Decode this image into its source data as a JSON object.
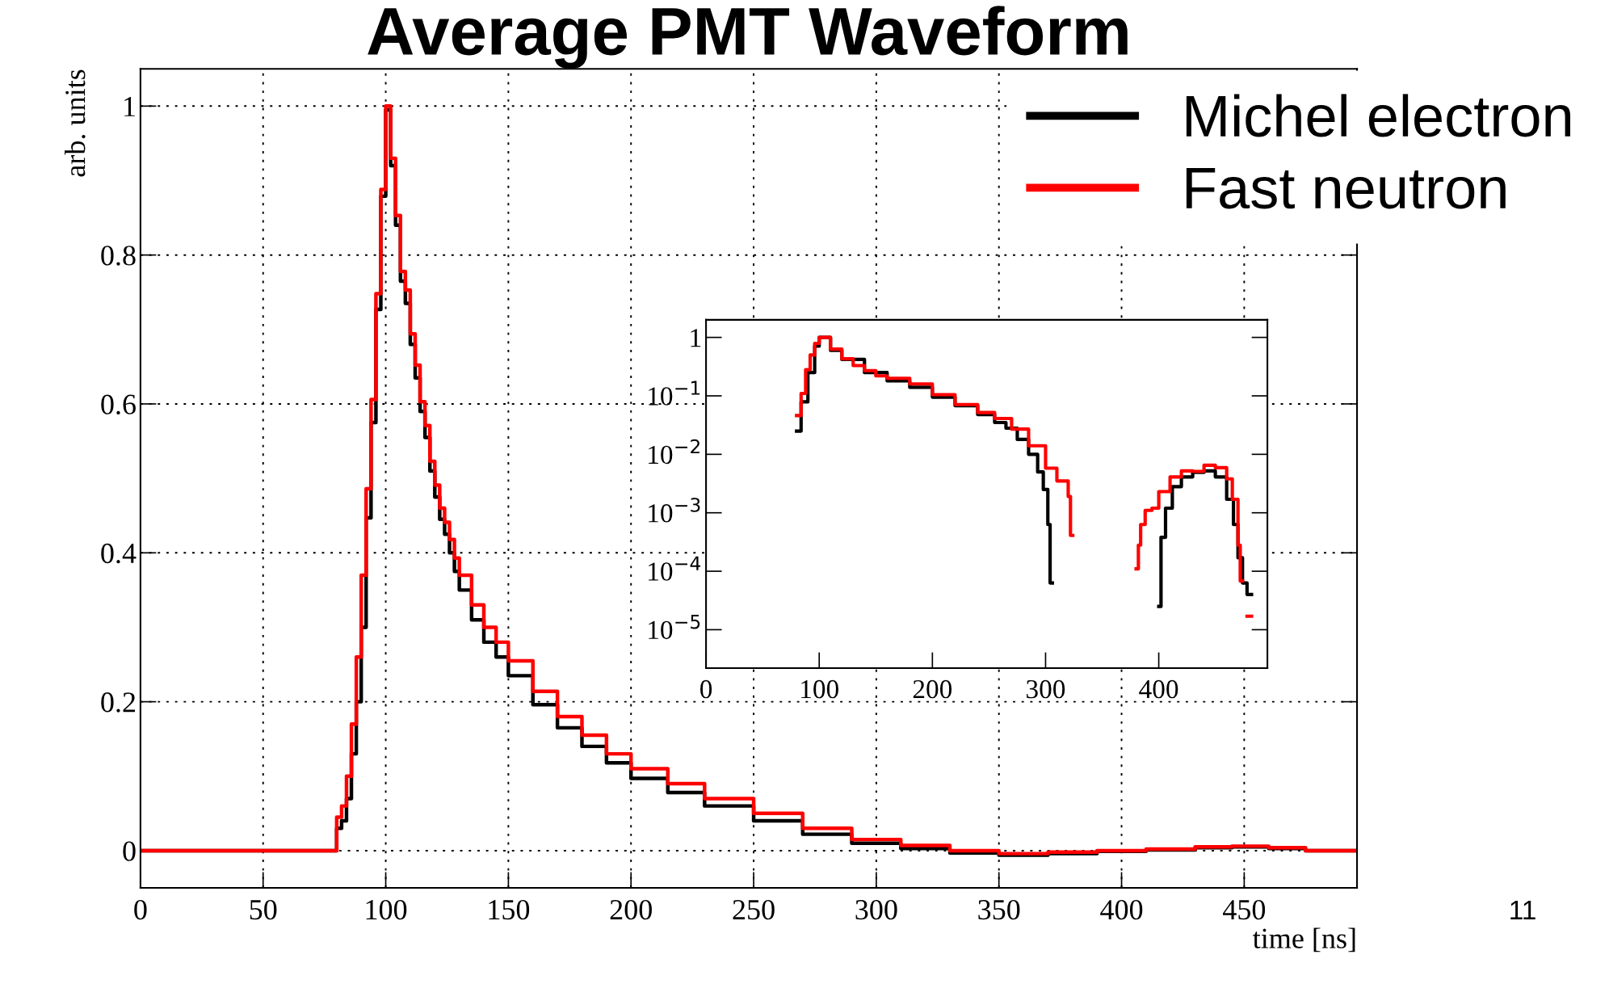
{
  "chart_data": [
    {
      "type": "step",
      "title": "Average PMT Waveform",
      "xlabel": "time [ns]",
      "ylabel": "arb. units",
      "annotations": [
        "11"
      ],
      "xlim": [
        0,
        496
      ],
      "ylim": [
        -0.05,
        1.05
      ],
      "xticks": [
        0,
        50,
        100,
        150,
        200,
        250,
        300,
        350,
        400,
        450
      ],
      "yticks": [
        0,
        0.2,
        0.4,
        0.6,
        0.8,
        1
      ],
      "grid": true,
      "legend": "top right",
      "series": [
        {
          "name": "Michel electron",
          "color": "#000000",
          "x": [
            0,
            80,
            82,
            84,
            86,
            88,
            90,
            92,
            94,
            96,
            98,
            100,
            102,
            104,
            106,
            108,
            110,
            112,
            114,
            116,
            118,
            120,
            122,
            124,
            126,
            128,
            130,
            135,
            140,
            145,
            150,
            160,
            170,
            180,
            190,
            200,
            215,
            230,
            250,
            270,
            290,
            310,
            330,
            350,
            370,
            390,
            410,
            430,
            445,
            460,
            475,
            496
          ],
          "values": [
            0,
            0.03,
            0.04,
            0.07,
            0.13,
            0.2,
            0.3,
            0.447,
            0.575,
            0.727,
            0.879,
            0.995,
            0.92,
            0.84,
            0.765,
            0.735,
            0.68,
            0.635,
            0.59,
            0.555,
            0.51,
            0.475,
            0.445,
            0.425,
            0.4,
            0.375,
            0.35,
            0.31,
            0.28,
            0.26,
            0.235,
            0.196,
            0.165,
            0.14,
            0.118,
            0.097,
            0.078,
            0.06,
            0.04,
            0.022,
            0.01,
            0.003,
            -0.003,
            -0.006,
            -0.004,
            -0.001,
            0.001,
            0.004,
            0.005,
            0.003,
            0,
            0
          ]
        },
        {
          "name": "Fast neutron",
          "color": "#ff0000",
          "x": [
            0,
            80,
            82,
            84,
            86,
            88,
            90,
            92,
            94,
            96,
            98,
            100,
            102,
            104,
            106,
            108,
            110,
            112,
            114,
            116,
            118,
            120,
            122,
            124,
            126,
            128,
            130,
            135,
            140,
            145,
            150,
            160,
            170,
            180,
            190,
            200,
            215,
            230,
            250,
            270,
            290,
            310,
            330,
            350,
            370,
            390,
            410,
            430,
            445,
            460,
            475,
            496
          ],
          "values": [
            0,
            0.045,
            0.06,
            0.1,
            0.17,
            0.26,
            0.37,
            0.486,
            0.606,
            0.748,
            0.888,
            1,
            0.93,
            0.853,
            0.778,
            0.753,
            0.694,
            0.652,
            0.603,
            0.571,
            0.523,
            0.491,
            0.46,
            0.441,
            0.418,
            0.393,
            0.37,
            0.33,
            0.3,
            0.28,
            0.255,
            0.214,
            0.18,
            0.155,
            0.13,
            0.11,
            0.09,
            0.07,
            0.05,
            0.03,
            0.015,
            0.007,
            0,
            -0.004,
            -0.002,
            0,
            0.002,
            0.005,
            0.006,
            0.004,
            0,
            0
          ]
        }
      ]
    },
    {
      "type": "step",
      "log": "y",
      "xlim": [
        0,
        496
      ],
      "ylim": [
        2.2e-06,
        2
      ],
      "xticks": [
        0,
        100,
        200,
        300,
        400
      ],
      "yticks": [
        {
          "value": 1e-05,
          "label": "10$^{−5}$"
        },
        {
          "value": 0.0001,
          "label": "10$^{−4}$"
        },
        {
          "value": 0.001,
          "label": "10$^{−3}$"
        },
        {
          "value": 0.01,
          "label": "10$^{−2}$"
        },
        {
          "value": 0.1,
          "label": "10$^{−1}$"
        },
        1
      ],
      "series": [
        {
          "color": "#000000",
          "x": [
            80,
            84,
            90,
            96,
            100,
            110,
            120,
            140,
            160,
            180,
            200,
            220,
            240,
            255,
            265,
            275,
            285,
            293,
            298,
            302,
            304,
            306,
            400,
            402,
            406,
            412,
            420,
            430,
            440,
            450,
            460,
            466,
            470,
            474,
            478,
            482
          ],
          "values": [
            0.025,
            0.079,
            0.25,
            0.71,
            1,
            0.6,
            0.42,
            0.25,
            0.18,
            0.14,
            0.095,
            0.068,
            0.048,
            0.035,
            0.028,
            0.018,
            0.01,
            0.005,
            0.0025,
            0.00063,
            6.3e-05,
            null,
            2.5e-05,
            0.00038,
            0.0012,
            0.0028,
            0.0041,
            0.0049,
            0.0052,
            0.0041,
            0.0017,
            0.00063,
            0.00017,
            6.3e-05,
            4e-05,
            4e-05
          ]
        },
        {
          "color": "#ff0000",
          "x": [
            80,
            84,
            88,
            92,
            96,
            100,
            110,
            120,
            130,
            140,
            150,
            160,
            180,
            200,
            220,
            240,
            255,
            270,
            285,
            300,
            310,
            320,
            322,
            324,
            380,
            382,
            384,
            388,
            394,
            400,
            410,
            420,
            430,
            440,
            450,
            460,
            465,
            470,
            472,
            474,
            478,
            482
          ],
          "values": [
            0.046,
            0.11,
            0.28,
            0.5,
            0.79,
            1,
            0.63,
            0.43,
            0.33,
            0.27,
            0.22,
            0.2,
            0.16,
            0.105,
            0.071,
            0.052,
            0.041,
            0.027,
            0.014,
            0.0058,
            0.0035,
            0.0019,
            0.00041,
            null,
            0.00011,
            0.00028,
            0.00063,
            0.0011,
            0.0012,
            0.0023,
            0.0041,
            0.0052,
            0.0051,
            0.0065,
            0.0059,
            0.0038,
            0.0017,
            0.00028,
            6.8e-05,
            null,
            1.7e-05,
            1.7e-05
          ]
        }
      ]
    }
  ]
}
